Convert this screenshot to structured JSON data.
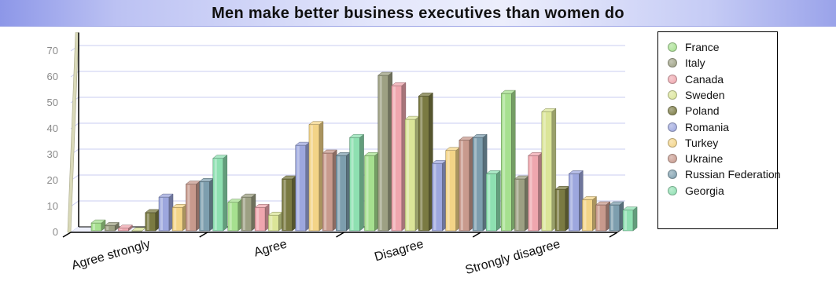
{
  "chart_data": {
    "type": "bar",
    "title": "Men make better business executives than women do",
    "xlabel": "",
    "ylabel": "",
    "ylim": [
      0,
      75
    ],
    "yticks": [
      0,
      10,
      20,
      30,
      40,
      50,
      60,
      70
    ],
    "grid": true,
    "legend_position": "right",
    "categories": [
      "Agree strongly",
      "Agree",
      "Disagree",
      "Strongly disagree"
    ],
    "series": [
      {
        "name": "France",
        "color": "#a6e08f",
        "values": [
          3,
          11,
          29,
          53
        ]
      },
      {
        "name": "Italy",
        "color": "#9da083",
        "values": [
          2,
          13,
          60,
          20
        ]
      },
      {
        "name": "Canada",
        "color": "#efa6ae",
        "values": [
          1,
          9,
          56,
          29
        ]
      },
      {
        "name": "Sweden",
        "color": "#dbe598",
        "values": [
          0,
          6,
          43,
          46
        ]
      },
      {
        "name": "Poland",
        "color": "#7a7a42",
        "values": [
          7,
          20,
          52,
          16
        ]
      },
      {
        "name": "Romania",
        "color": "#9da7de",
        "values": [
          13,
          33,
          26,
          22
        ]
      },
      {
        "name": "Turkey",
        "color": "#f3d487",
        "values": [
          9,
          41,
          31,
          12
        ]
      },
      {
        "name": "Ukraine",
        "color": "#c89a8d",
        "values": [
          18,
          30,
          35,
          10
        ]
      },
      {
        "name": "Russian Federation",
        "color": "#7d9eae",
        "values": [
          19,
          29,
          36,
          10
        ]
      },
      {
        "name": "Georgia",
        "color": "#8ee0b1",
        "values": [
          28,
          36,
          22,
          8
        ]
      }
    ]
  }
}
